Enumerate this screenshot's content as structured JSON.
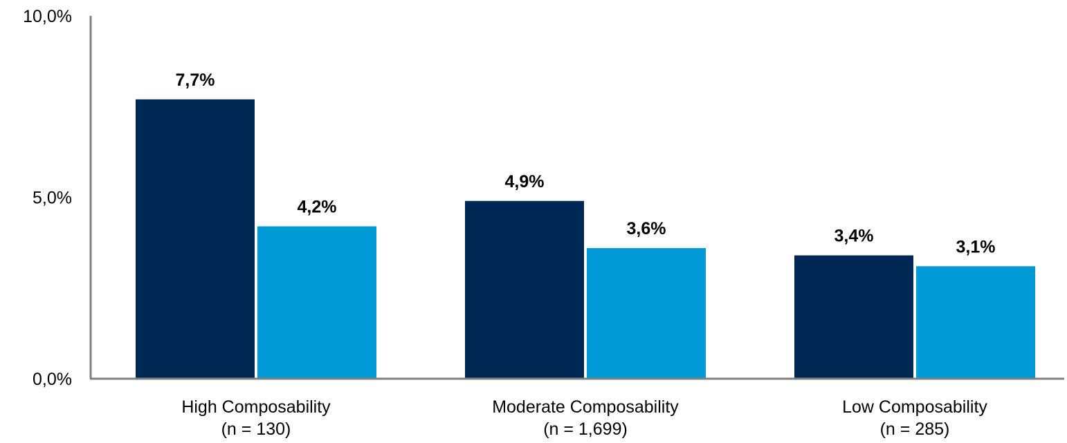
{
  "chart_data": {
    "type": "bar",
    "categories": [
      {
        "line1": "High Composability",
        "line2": "(n = 130)"
      },
      {
        "line1": "Moderate Composability",
        "line2": "(n =  1,699)"
      },
      {
        "line1": "Low Composability",
        "line2": "(n = 285)"
      }
    ],
    "series": [
      {
        "values": [
          7.7,
          4.9,
          3.4
        ],
        "labels": [
          "7,7%",
          "4,9%",
          "3,4%"
        ],
        "color": "#002855"
      },
      {
        "values": [
          4.2,
          3.6,
          3.1
        ],
        "labels": [
          "4,2%",
          "3,6%",
          "3,1%"
        ],
        "color": "#009ad6"
      }
    ],
    "ylim": [
      0,
      10
    ],
    "yticks": [
      {
        "value": 0,
        "label": "0,0%"
      },
      {
        "value": 5,
        "label": "5,0%"
      },
      {
        "value": 10,
        "label": "10,0%"
      }
    ],
    "axis_color": "#808080",
    "grid": false,
    "title": "",
    "xlabel": "",
    "ylabel": ""
  }
}
